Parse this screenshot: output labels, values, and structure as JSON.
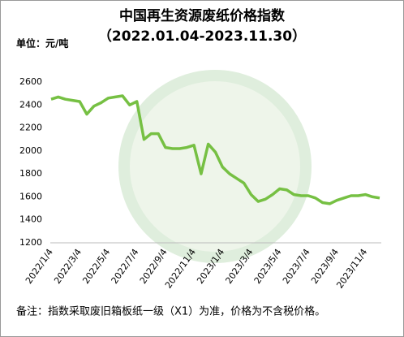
{
  "chart_data": {
    "type": "line",
    "title": "中国再生资源废纸价格指数",
    "subtitle": "（2022.01.04-2023.11.30）",
    "unit_label": "单位：元/吨",
    "note": "备注：指数采取废旧箱板纸一级（X1）为准，价格为不含税价格。",
    "categories": [
      "2022/1/4",
      null,
      null,
      null,
      "2022/3/4",
      null,
      null,
      null,
      "2022/5/4",
      null,
      null,
      null,
      "2022/7/4",
      null,
      null,
      null,
      "2022/9/4",
      null,
      null,
      null,
      "2022/11/4",
      null,
      null,
      null,
      "2023/1/4",
      null,
      null,
      null,
      "2023/3/4",
      null,
      null,
      null,
      "2023/5/4",
      null,
      null,
      null,
      "2023/7/4",
      null,
      null,
      null,
      "2023/9/4",
      null,
      null,
      null,
      "2023/11/4",
      null,
      null
    ],
    "values": [
      2450,
      2470,
      2450,
      2440,
      2430,
      2320,
      2390,
      2420,
      2460,
      2470,
      2480,
      2400,
      2430,
      2100,
      2150,
      2150,
      2030,
      2020,
      2020,
      2030,
      2050,
      1800,
      2060,
      1990,
      1860,
      1800,
      1760,
      1720,
      1620,
      1560,
      1580,
      1620,
      1670,
      1660,
      1620,
      1610,
      1610,
      1590,
      1550,
      1540,
      1570,
      1590,
      1610,
      1610,
      1620,
      1600,
      1590
    ],
    "color": "#76c043",
    "ylim": [
      1200,
      2600
    ],
    "yticks": [
      1200,
      1400,
      1600,
      1800,
      2000,
      2200,
      2400,
      2600
    ],
    "grid": false
  }
}
